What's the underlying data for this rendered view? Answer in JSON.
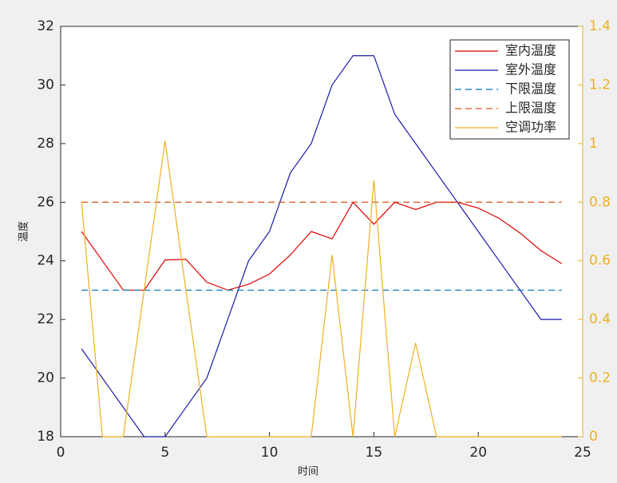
{
  "chart_data": {
    "type": "line",
    "xlabel": "时间",
    "ylabel": "温度",
    "x": [
      1,
      2,
      3,
      4,
      5,
      6,
      7,
      8,
      9,
      10,
      11,
      12,
      13,
      14,
      15,
      16,
      17,
      18,
      19,
      20,
      21,
      22,
      23,
      24
    ],
    "series": [
      {
        "name": "室内温度",
        "color": "#e00000",
        "dash": false,
        "values": [
          25,
          24,
          23,
          23,
          24.03,
          24.05,
          23.27,
          23,
          23.2,
          23.55,
          24.2,
          25,
          24.75,
          26,
          25.25,
          26,
          25.75,
          26,
          26,
          25.8,
          25.45,
          24.95,
          24.35,
          23.9
        ]
      },
      {
        "name": "室外温度",
        "color": "#1a1aa6",
        "dash": false,
        "values": [
          21,
          20,
          19,
          18,
          18,
          19,
          20,
          22,
          24,
          25,
          27,
          28,
          30,
          31,
          31,
          29,
          28,
          27,
          26,
          25,
          24,
          23,
          22,
          22
        ]
      },
      {
        "name": "下限温度",
        "color": "#0072bd",
        "dash": true,
        "values": [
          23,
          23,
          23,
          23,
          23,
          23,
          23,
          23,
          23,
          23,
          23,
          23,
          23,
          23,
          23,
          23,
          23,
          23,
          23,
          23,
          23,
          23,
          23,
          23
        ]
      },
      {
        "name": "上限温度",
        "color": "#d95319",
        "dash": true,
        "values": [
          26,
          26,
          26,
          26,
          26,
          26,
          26,
          26,
          26,
          26,
          26,
          26,
          26,
          26,
          26,
          26,
          26,
          26,
          26,
          26,
          26,
          26,
          26,
          26
        ]
      },
      {
        "name": "空调功率",
        "color": "#edb120",
        "dash": false,
        "axis": "y2",
        "values": [
          0.8,
          0,
          0,
          0.5,
          1.01,
          0.5,
          0,
          0,
          0,
          0,
          0,
          0,
          0.62,
          0,
          0.875,
          0,
          0.32,
          0,
          0,
          0,
          0,
          0,
          0,
          0
        ]
      }
    ],
    "xlim": [
      0,
      25
    ],
    "xticks": [
      0,
      5,
      10,
      15,
      20,
      25
    ],
    "ylim": [
      18,
      32
    ],
    "yticks": [
      18,
      20,
      22,
      24,
      26,
      28,
      30,
      32
    ],
    "y2lim": [
      0,
      1.4
    ],
    "y2ticks": [
      0,
      0.2,
      0.4,
      0.6,
      0.8,
      1,
      1.2,
      1.4
    ],
    "y2color": "#edb120",
    "legend": "upper-right"
  }
}
